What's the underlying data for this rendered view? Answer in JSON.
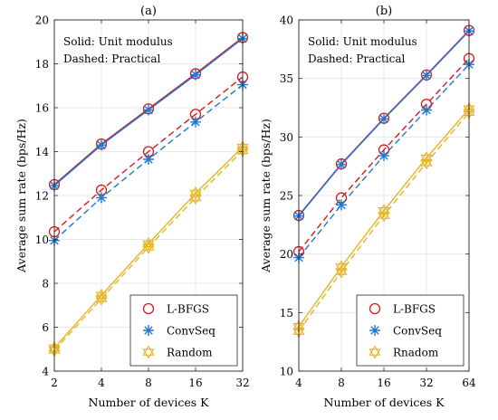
{
  "chart_data": [
    {
      "type": "line",
      "title": "(a)",
      "xlabel": "Number of devices K",
      "ylabel": "Average sum rate (bps/Hz)",
      "x": [
        2,
        4,
        8,
        16,
        32
      ],
      "x_ticks": [
        "2",
        "4",
        "8",
        "16",
        "32"
      ],
      "y_ticks": [
        4,
        6,
        8,
        10,
        12,
        14,
        16,
        18,
        20
      ],
      "ylim": [
        4,
        20
      ],
      "grid": true,
      "annotation": [
        "Solid: Unit modulus",
        "Dashed: Practical"
      ],
      "legend": {
        "position": "bottom-right",
        "entries": [
          "L-BFGS",
          "ConvSeq",
          "Random"
        ]
      },
      "series": [
        {
          "name": "L-BFGS",
          "line": "solid",
          "values": [
            12.5,
            14.35,
            15.95,
            17.55,
            19.2
          ]
        },
        {
          "name": "ConvSeq",
          "line": "solid",
          "values": [
            12.45,
            14.3,
            15.9,
            17.5,
            19.15
          ]
        },
        {
          "name": "Random",
          "line": "solid",
          "values": [
            5.05,
            7.45,
            9.8,
            12.1,
            14.2
          ]
        },
        {
          "name": "L-BFGS",
          "line": "dashed",
          "values": [
            10.35,
            12.25,
            14.0,
            15.7,
            17.4
          ]
        },
        {
          "name": "ConvSeq",
          "line": "dashed",
          "values": [
            9.95,
            11.9,
            13.65,
            15.35,
            17.05
          ]
        },
        {
          "name": "Random",
          "line": "dashed",
          "values": [
            4.95,
            7.3,
            9.65,
            11.9,
            14.05
          ]
        }
      ]
    },
    {
      "type": "line",
      "title": "(b)",
      "xlabel": "Number of devices K",
      "ylabel": "Average sum rate (bps/Hz)",
      "x": [
        4,
        8,
        16,
        32,
        64
      ],
      "x_ticks": [
        "4",
        "8",
        "16",
        "32",
        "64"
      ],
      "y_ticks": [
        10,
        15,
        20,
        25,
        30,
        35,
        40
      ],
      "ylim": [
        10,
        40
      ],
      "grid": true,
      "annotation": [
        "Solid: Unit modulus",
        "Dashed: Practical"
      ],
      "legend": {
        "position": "bottom-right",
        "entries": [
          "L-BFGS",
          "ConvSeq",
          "Rnadom"
        ]
      },
      "series": [
        {
          "name": "L-BFGS",
          "line": "solid",
          "values": [
            23.3,
            27.7,
            31.6,
            35.3,
            39.1
          ]
        },
        {
          "name": "ConvSeq",
          "line": "solid",
          "values": [
            23.25,
            27.65,
            31.55,
            35.25,
            39.05
          ]
        },
        {
          "name": "Rnadom",
          "line": "solid",
          "values": [
            13.8,
            18.9,
            23.7,
            28.2,
            32.4
          ]
        },
        {
          "name": "L-BFGS",
          "line": "dashed",
          "values": [
            20.2,
            24.8,
            28.9,
            32.8,
            36.7
          ]
        },
        {
          "name": "ConvSeq",
          "line": "dashed",
          "values": [
            19.7,
            24.2,
            28.4,
            32.3,
            36.2
          ]
        },
        {
          "name": "Rnadom",
          "line": "dashed",
          "values": [
            13.4,
            18.5,
            23.3,
            27.8,
            32.1
          ]
        }
      ]
    }
  ],
  "colors": {
    "lbfgs": "#d7191c",
    "convseq": "#1f78d1",
    "random": "#e6b422"
  }
}
